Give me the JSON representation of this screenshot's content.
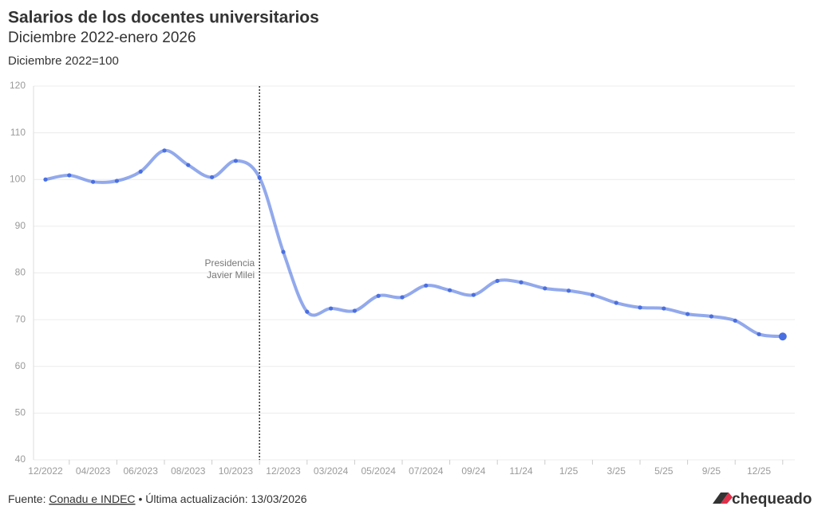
{
  "chart_data": {
    "type": "line",
    "title": "Salarios de los docentes universitarios",
    "subtitle": "Diciembre 2022-enero 2026",
    "y_label": "Diciembre 2022=100",
    "categories": [
      "12/2022",
      null,
      "04/2023",
      null,
      "06/2023",
      null,
      "08/2023",
      null,
      "10/2023",
      null,
      "12/2023",
      null,
      "03/2024",
      null,
      "05/2024",
      null,
      "07/2024",
      null,
      "09/24",
      null,
      "11/24",
      null,
      "1/25",
      null,
      "3/25",
      null,
      "5/25",
      null,
      "9/25",
      null,
      "12/25",
      null
    ],
    "series": [
      {
        "name": "Salarios",
        "color": "#4a6fe0",
        "values": [
          100,
          100.9,
          99.5,
          99.7,
          101.7,
          106.2,
          103.1,
          100.5,
          104,
          100.4,
          84.5,
          71.7,
          72.4,
          71.9,
          75.1,
          74.8,
          77.3,
          76.3,
          75.3,
          78.3,
          78,
          76.7,
          76.2,
          75.3,
          73.6,
          72.6,
          72.4,
          71.2,
          70.7,
          69.8,
          66.9,
          66.4
        ]
      }
    ],
    "ylim": [
      40,
      120
    ],
    "yticks": [
      40,
      50,
      60,
      70,
      80,
      90,
      100,
      110,
      120
    ],
    "grid": true,
    "annotation": [
      "Presidencia",
      "Javier Milei"
    ]
  },
  "footer": {
    "prefix": "Fuente:",
    "source": "Conadu e INDEC",
    "updated": "• Última actualización: 13/03/2026",
    "logo": "chequeado"
  }
}
